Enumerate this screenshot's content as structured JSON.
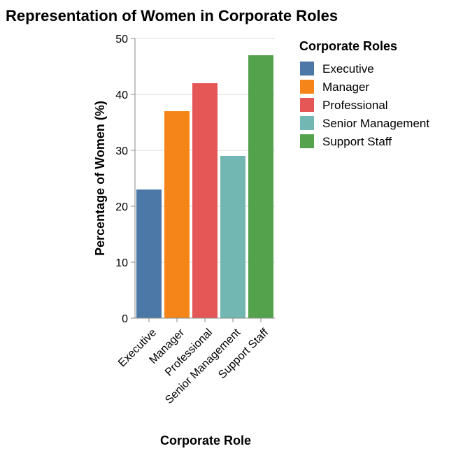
{
  "chart_data": {
    "type": "bar",
    "title": "Representation of Women in Corporate Roles",
    "xlabel": "Corporate Role",
    "ylabel": "Percentage of Women (%)",
    "categories": [
      "Executive",
      "Manager",
      "Professional",
      "Senior Management",
      "Support Staff"
    ],
    "values": [
      23,
      37,
      42,
      29,
      47
    ],
    "ylim": [
      0,
      50
    ],
    "yticks": [
      0,
      10,
      20,
      30,
      40,
      50
    ],
    "grid": true,
    "colors": [
      "#4c78a8",
      "#f58518",
      "#e45756",
      "#72b7b2",
      "#54a24b"
    ],
    "legend": {
      "title": "Corporate Roles",
      "placement": "right",
      "items": [
        "Executive",
        "Manager",
        "Professional",
        "Senior Management",
        "Support Staff"
      ]
    }
  }
}
